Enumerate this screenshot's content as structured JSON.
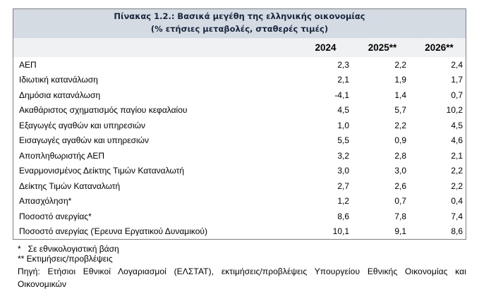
{
  "table": {
    "title_line1": "Πίνακας 1.2.: Βασικά μεγέθη της ελληνικής οικονομίας",
    "title_line2": "(% ετήσιες μεταβολές, σταθερές τιμές)",
    "columns": [
      "2024",
      "2025**",
      "2026**"
    ],
    "rows": [
      {
        "label": "ΑΕΠ",
        "values": [
          "2,3",
          "2,2",
          "2,4"
        ]
      },
      {
        "label": "Ιδιωτική κατανάλωση",
        "values": [
          "2,1",
          "1,9",
          "1,7"
        ]
      },
      {
        "label": "Δημόσια κατανάλωση",
        "values": [
          "-4,1",
          "1,4",
          "0,7"
        ]
      },
      {
        "label": "Ακαθάριστος σχηματισμός παγίου κεφαλαίου",
        "values": [
          "4,5",
          "5,7",
          "10,2"
        ]
      },
      {
        "label": "Εξαγωγές αγαθών και υπηρεσιών",
        "values": [
          "1,0",
          "2,2",
          "4,5"
        ]
      },
      {
        "label": "Εισαγωγές αγαθών και υπηρεσιών",
        "values": [
          "5,5",
          "0,9",
          "4,6"
        ]
      },
      {
        "label": "Αποπληθωριστής ΑΕΠ",
        "values": [
          "3,2",
          "2,8",
          "2,1"
        ]
      },
      {
        "label": "Εναρμονισμένος Δείκτης Τιμών Καταναλωτή",
        "values": [
          "3,0",
          "3,0",
          "2,2"
        ]
      },
      {
        "label": "Δείκτης Τιμών Καταναλωτή",
        "values": [
          "2,7",
          "2,6",
          "2,2"
        ]
      },
      {
        "label": "Απασχόληση*",
        "values": [
          "1,2",
          "0,7",
          "0,4"
        ]
      },
      {
        "label": "Ποσοστό ανεργίας*",
        "values": [
          "8,6",
          "7,8",
          "7,4"
        ]
      },
      {
        "label": "Ποσοστό ανεργίας (Έρευνα Εργατικού Δυναμικού)",
        "values": [
          "10,1",
          "9,1",
          "8,6"
        ]
      }
    ]
  },
  "footnotes": {
    "note1": "*   Σε εθνικολογιστική βάση",
    "note2": "** Εκτιμήσεις/προβλέψεις",
    "source": "Πηγή: Ετήσιοι Εθνικοί Λογαριασμοί (ΕΛΣΤΑΤ), εκτιμήσεις/προβλέψεις Υπουργείου Εθνικής Οικονομίας και Οικονομικών"
  },
  "colors": {
    "title_band_background": "#d5dbe3",
    "header_row_background": "#f0f1f2",
    "table_border": "#7f7f7f",
    "title_text": "#17263d",
    "body_text": "#000000"
  }
}
